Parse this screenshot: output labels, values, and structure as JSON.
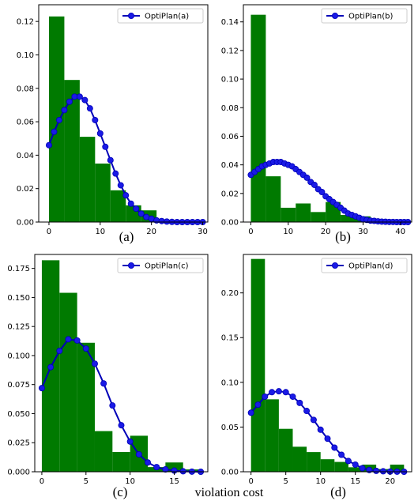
{
  "figure": {
    "xlabel": "violation cost"
  },
  "colors": {
    "bar": "#007a00",
    "line": "#0000b8",
    "marker": "#1a1ae6",
    "axis": "#000000"
  },
  "chart_data": [
    {
      "type": "bar",
      "panel_label": "(a)",
      "legend": "OptiPlan(a)",
      "xlim": [
        -2,
        31
      ],
      "ylim": [
        0,
        0.13
      ],
      "xticks": [
        0,
        10,
        20,
        30
      ],
      "yticks": [
        0.0,
        0.02,
        0.04,
        0.06,
        0.08,
        0.1,
        0.12
      ],
      "ytick_labels": [
        "0.00",
        "0.02",
        "0.04",
        "0.06",
        "0.08",
        "0.10",
        "0.12"
      ],
      "bins": [
        [
          0,
          3
        ],
        [
          3,
          6
        ],
        [
          6,
          9
        ],
        [
          9,
          12
        ],
        [
          12,
          15
        ],
        [
          15,
          18
        ],
        [
          18,
          21
        ]
      ],
      "values": [
        0.123,
        0.085,
        0.051,
        0.035,
        0.019,
        0.01,
        0.007
      ],
      "curve_x": [
        0,
        1,
        2,
        3,
        4,
        5,
        6,
        7,
        8,
        9,
        10,
        11,
        12,
        13,
        14,
        15,
        16,
        17,
        18,
        19,
        20,
        21,
        22,
        23,
        24,
        25,
        26,
        27,
        28,
        29,
        30
      ],
      "curve_y": [
        0.046,
        0.054,
        0.061,
        0.067,
        0.072,
        0.075,
        0.075,
        0.073,
        0.068,
        0.061,
        0.053,
        0.045,
        0.037,
        0.029,
        0.022,
        0.016,
        0.011,
        0.008,
        0.005,
        0.003,
        0.002,
        0.001,
        0.0006,
        0.0003,
        0.0001,
        0,
        0,
        0,
        0,
        0,
        0
      ]
    },
    {
      "type": "bar",
      "panel_label": "(b)",
      "legend": "OptiPlan(b)",
      "xlim": [
        -2,
        43
      ],
      "ylim": [
        0,
        0.152
      ],
      "xticks": [
        0,
        10,
        20,
        30,
        40
      ],
      "yticks": [
        0.0,
        0.02,
        0.04,
        0.06,
        0.08,
        0.1,
        0.12,
        0.14
      ],
      "ytick_labels": [
        "0.00",
        "0.02",
        "0.04",
        "0.06",
        "0.08",
        "0.10",
        "0.12",
        "0.14"
      ],
      "bins": [
        [
          0,
          4
        ],
        [
          4,
          8
        ],
        [
          8,
          12
        ],
        [
          12,
          16
        ],
        [
          16,
          20
        ],
        [
          20,
          24
        ],
        [
          24,
          28
        ],
        [
          28,
          32
        ],
        [
          32,
          36
        ],
        [
          36,
          40
        ]
      ],
      "values": [
        0.145,
        0.032,
        0.01,
        0.013,
        0.007,
        0.014,
        0.005,
        0.004,
        0.002,
        0.001
      ],
      "curve_x": [
        0,
        1,
        2,
        3,
        4,
        5,
        6,
        7,
        8,
        9,
        10,
        11,
        12,
        13,
        14,
        15,
        16,
        17,
        18,
        19,
        20,
        21,
        22,
        23,
        24,
        25,
        26,
        27,
        28,
        29,
        30,
        31,
        32,
        33,
        34,
        35,
        36,
        37,
        38,
        39,
        40,
        41,
        42
      ],
      "curve_y": [
        0.033,
        0.035,
        0.037,
        0.039,
        0.04,
        0.041,
        0.042,
        0.042,
        0.042,
        0.041,
        0.04,
        0.039,
        0.037,
        0.035,
        0.033,
        0.031,
        0.028,
        0.026,
        0.023,
        0.021,
        0.018,
        0.016,
        0.014,
        0.012,
        0.01,
        0.008,
        0.006,
        0.005,
        0.004,
        0.003,
        0.002,
        0.0015,
        0.001,
        0.0008,
        0.0005,
        0.0003,
        0.0002,
        0.0001,
        0.0001,
        0,
        0,
        0,
        0
      ]
    },
    {
      "type": "bar",
      "panel_label": "(c)",
      "legend": "OptiPlan(c)",
      "xlim": [
        -0.8,
        18.8
      ],
      "ylim": [
        0,
        0.187
      ],
      "xticks": [
        0,
        5,
        10,
        15
      ],
      "yticks": [
        0.0,
        0.025,
        0.05,
        0.075,
        0.1,
        0.125,
        0.15,
        0.175
      ],
      "ytick_labels": [
        "0.000",
        "0.025",
        "0.050",
        "0.075",
        "0.100",
        "0.125",
        "0.150",
        "0.175"
      ],
      "bins": [
        [
          0,
          2
        ],
        [
          2,
          4
        ],
        [
          4,
          6
        ],
        [
          6,
          8
        ],
        [
          8,
          10
        ],
        [
          10,
          12
        ],
        [
          12,
          14
        ],
        [
          14,
          16
        ],
        [
          16,
          18
        ]
      ],
      "values": [
        0.182,
        0.154,
        0.111,
        0.035,
        0.017,
        0.031,
        0.004,
        0.008,
        0.002
      ],
      "curve_x": [
        0,
        1,
        2,
        3,
        4,
        5,
        6,
        7,
        8,
        9,
        10,
        11,
        12,
        13,
        14,
        15,
        16,
        17,
        18
      ],
      "curve_y": [
        0.072,
        0.09,
        0.104,
        0.114,
        0.113,
        0.106,
        0.093,
        0.076,
        0.057,
        0.04,
        0.026,
        0.015,
        0.008,
        0.004,
        0.002,
        0.001,
        0.0004,
        0.0001,
        0
      ]
    },
    {
      "type": "bar",
      "panel_label": "(d)",
      "legend": "OptiPlan(d)",
      "xlim": [
        -1.1,
        23.1
      ],
      "ylim": [
        0,
        0.243
      ],
      "xticks": [
        0,
        5,
        10,
        15,
        20
      ],
      "yticks": [
        0.0,
        0.05,
        0.1,
        0.15,
        0.2
      ],
      "ytick_labels": [
        "0.00",
        "0.05",
        "0.10",
        "0.15",
        "0.20"
      ],
      "bins": [
        [
          0,
          2
        ],
        [
          2,
          4
        ],
        [
          4,
          6
        ],
        [
          6,
          8
        ],
        [
          8,
          10
        ],
        [
          10,
          12
        ],
        [
          12,
          14
        ],
        [
          14,
          16
        ],
        [
          16,
          18
        ],
        [
          18,
          20
        ],
        [
          20,
          22
        ]
      ],
      "values": [
        0.238,
        0.081,
        0.048,
        0.028,
        0.022,
        0.014,
        0.011,
        0.005,
        0.008,
        0.003,
        0.008
      ],
      "curve_x": [
        0,
        1,
        2,
        3,
        4,
        5,
        6,
        7,
        8,
        9,
        10,
        11,
        12,
        13,
        14,
        15,
        16,
        17,
        18,
        19,
        20,
        21,
        22
      ],
      "curve_y": [
        0.066,
        0.075,
        0.084,
        0.089,
        0.09,
        0.089,
        0.084,
        0.077,
        0.068,
        0.058,
        0.047,
        0.037,
        0.027,
        0.019,
        0.012,
        0.008,
        0.004,
        0.002,
        0.001,
        0.0005,
        0.0002,
        0.0001,
        0
      ]
    }
  ]
}
